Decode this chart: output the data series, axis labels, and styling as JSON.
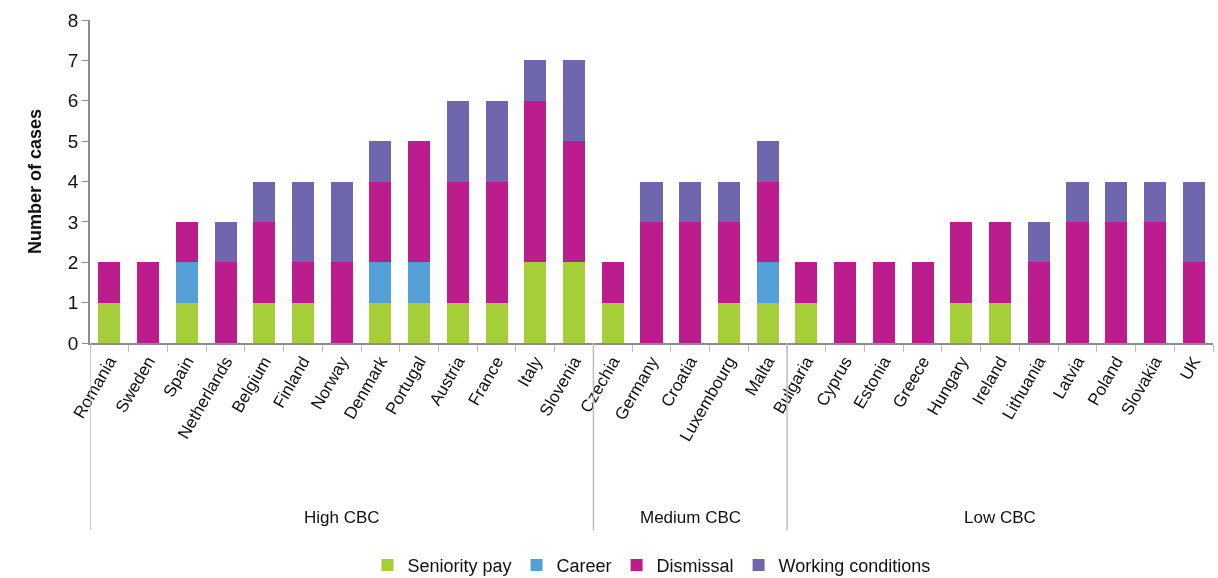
{
  "chart_data": {
    "type": "bar",
    "stacked": true,
    "ylabel": "Number of cases",
    "categories": [
      "Romania",
      "Sweden",
      "Spain",
      "Netherlands",
      "Belgium",
      "Finland",
      "Norway",
      "Denmark",
      "Portugal",
      "Austria",
      "France",
      "Italy",
      "Slovenia",
      "Czechia",
      "Germany",
      "Croatia",
      "Luxembourg",
      "Malta",
      "Bulgaria",
      "Cyprus",
      "Estonia",
      "Greece",
      "Hungary",
      "Ireland",
      "Lithuania",
      "Latvia",
      "Poland",
      "Slovakia",
      "UK"
    ],
    "series": [
      {
        "name": "Seniority pay",
        "color": "#a6ce39",
        "values": [
          1,
          null,
          1,
          null,
          1,
          1,
          null,
          1,
          1,
          1,
          1,
          2,
          2,
          1,
          null,
          null,
          1,
          1,
          1,
          null,
          null,
          null,
          1,
          1,
          null,
          null,
          null,
          null,
          null
        ]
      },
      {
        "name": "Career",
        "color": "#539fd6",
        "values": [
          null,
          null,
          1,
          null,
          null,
          null,
          null,
          1,
          1,
          null,
          null,
          null,
          null,
          null,
          null,
          null,
          null,
          1,
          null,
          null,
          null,
          null,
          null,
          null,
          null,
          null,
          null,
          null,
          null
        ]
      },
      {
        "name": "Dismissal",
        "color": "#bb1e8c",
        "values": [
          1,
          2,
          1,
          2,
          2,
          1,
          2,
          2,
          3,
          3,
          3,
          4,
          3,
          1,
          3,
          3,
          2,
          2,
          1,
          2,
          2,
          2,
          2,
          2,
          2,
          3,
          3,
          3,
          2
        ]
      },
      {
        "name": "Working conditions",
        "color": "#6e67ae",
        "values": [
          null,
          null,
          null,
          1,
          1,
          2,
          2,
          1,
          null,
          2,
          2,
          1,
          2,
          null,
          1,
          1,
          1,
          1,
          null,
          null,
          null,
          null,
          null,
          null,
          1,
          1,
          1,
          1,
          2
        ]
      }
    ],
    "ylim": [
      0,
      8
    ],
    "yticks": [
      0,
      1,
      2,
      3,
      4,
      5,
      6,
      7,
      8
    ],
    "legend": "bottom",
    "annotations": [
      "High CBC",
      "Medium CBC",
      "Low CBC"
    ]
  }
}
